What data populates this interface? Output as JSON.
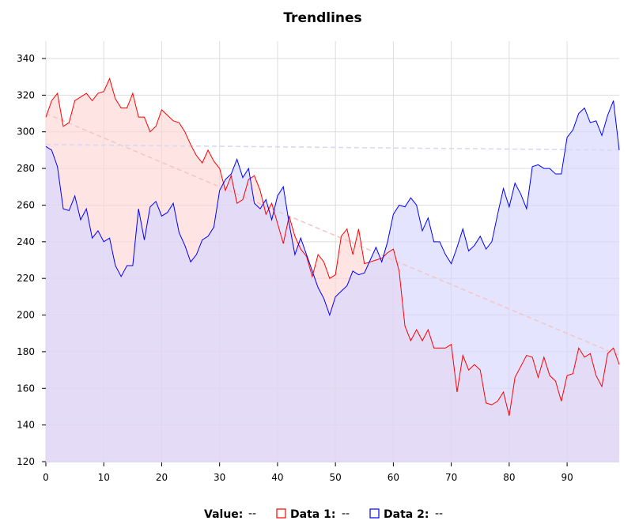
{
  "chart_data": {
    "type": "area",
    "title": "Trendlines",
    "xlabel": "",
    "ylabel": "",
    "xlim": [
      0,
      99
    ],
    "ylim": [
      120,
      350
    ],
    "x_ticks": [
      0,
      10,
      20,
      30,
      40,
      50,
      60,
      70,
      80,
      90
    ],
    "y_ticks": [
      120,
      140,
      160,
      180,
      200,
      220,
      240,
      260,
      280,
      300,
      320,
      340
    ],
    "grid": true,
    "legend": {
      "placement": "bottom",
      "value_label": "Value:",
      "value_text": "--",
      "items": [
        {
          "label": "Data 1:",
          "value": "--",
          "color": "#ff0000"
        },
        {
          "label": "Data 2:",
          "value": "--",
          "color": "#0000ff"
        }
      ]
    },
    "series": [
      {
        "name": "Data 1",
        "color": "#ff0000",
        "fill": "#ffd6d6",
        "x": [
          0,
          1,
          2,
          3,
          4,
          5,
          6,
          7,
          8,
          9,
          10,
          11,
          12,
          13,
          14,
          15,
          16,
          17,
          18,
          19,
          20,
          21,
          22,
          23,
          24,
          25,
          26,
          27,
          28,
          29,
          30,
          31,
          32,
          33,
          34,
          35,
          36,
          37,
          38,
          39,
          40,
          41,
          42,
          43,
          44,
          45,
          46,
          47,
          48,
          49,
          50,
          51,
          52,
          53,
          54,
          55,
          56,
          57,
          58,
          59,
          60,
          61,
          62,
          63,
          64,
          65,
          66,
          67,
          68,
          69,
          70,
          71,
          72,
          73,
          74,
          75,
          76,
          77,
          78,
          79,
          80,
          81,
          82,
          83,
          84,
          85,
          86,
          87,
          88,
          89,
          90,
          91,
          92,
          93,
          94,
          95,
          96,
          97,
          98,
          99
        ],
        "values": [
          308,
          317,
          321,
          303,
          305,
          317,
          319,
          321,
          317,
          321,
          322,
          329,
          318,
          313,
          313,
          321,
          308,
          308,
          300,
          303,
          312,
          309,
          306,
          305,
          300,
          293,
          287,
          283,
          290,
          284,
          280,
          268,
          276,
          261,
          263,
          274,
          276,
          268,
          255,
          261,
          250,
          239,
          254,
          243,
          236,
          232,
          221,
          233,
          229,
          220,
          222,
          243,
          247,
          233,
          247,
          228,
          229,
          230,
          231,
          234,
          236,
          224,
          194,
          186,
          192,
          186,
          192,
          182,
          182,
          182,
          184,
          158,
          178,
          170,
          173,
          170,
          152,
          151,
          153,
          158,
          145,
          166,
          172,
          178,
          177,
          166,
          177,
          167,
          164,
          153,
          167,
          168,
          182,
          177,
          179,
          167,
          161,
          179,
          182,
          173
        ]
      },
      {
        "name": "Data 2",
        "color": "#0000ff",
        "fill": "#d6d6ff",
        "x": [
          0,
          1,
          2,
          3,
          4,
          5,
          6,
          7,
          8,
          9,
          10,
          11,
          12,
          13,
          14,
          15,
          16,
          17,
          18,
          19,
          20,
          21,
          22,
          23,
          24,
          25,
          26,
          27,
          28,
          29,
          30,
          31,
          32,
          33,
          34,
          35,
          36,
          37,
          38,
          39,
          40,
          41,
          42,
          43,
          44,
          45,
          46,
          47,
          48,
          49,
          50,
          51,
          52,
          53,
          54,
          55,
          56,
          57,
          58,
          59,
          60,
          61,
          62,
          63,
          64,
          65,
          66,
          67,
          68,
          69,
          70,
          71,
          72,
          73,
          74,
          75,
          76,
          77,
          78,
          79,
          80,
          81,
          82,
          83,
          84,
          85,
          86,
          87,
          88,
          89,
          90,
          91,
          92,
          93,
          94,
          95,
          96,
          97,
          98,
          99
        ],
        "values": [
          292,
          290,
          281,
          258,
          257,
          265,
          252,
          258,
          242,
          246,
          240,
          242,
          227,
          221,
          227,
          227,
          258,
          241,
          259,
          262,
          254,
          256,
          261,
          245,
          238,
          229,
          233,
          241,
          243,
          248,
          268,
          274,
          277,
          285,
          275,
          280,
          261,
          258,
          263,
          252,
          265,
          270,
          250,
          233,
          242,
          233,
          224,
          215,
          209,
          200,
          210,
          213,
          216,
          224,
          222,
          223,
          230,
          237,
          229,
          240,
          255,
          260,
          259,
          264,
          260,
          246,
          253,
          240,
          240,
          233,
          228,
          237,
          247,
          235,
          238,
          243,
          236,
          240,
          255,
          269,
          259,
          272,
          266,
          258,
          281,
          282,
          280,
          280,
          277,
          277,
          297,
          301,
          310,
          313,
          305,
          306,
          298,
          309,
          317,
          290
        ]
      }
    ],
    "trendlines": [
      {
        "series": "Data 1",
        "color": "#f0c8c8",
        "x": [
          0,
          99
        ],
        "values": [
          310,
          178
        ]
      },
      {
        "series": "Data 2",
        "color": "#d8d8f4",
        "x": [
          0,
          99
        ],
        "values": [
          293,
          290
        ]
      }
    ]
  }
}
